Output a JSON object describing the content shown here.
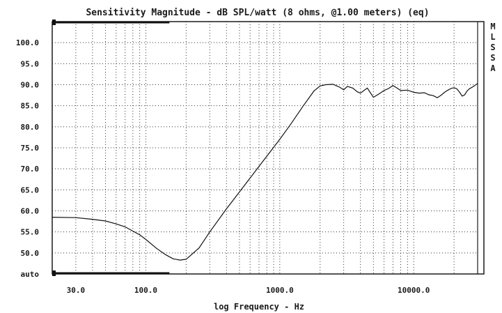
{
  "chart_data": {
    "type": "line",
    "title": "Sensitivity Magnitude - dB SPL/watt (8 ohms, @1.00 meters) (eq)",
    "xlabel": "log Frequency - Hz",
    "ylabel": "",
    "x_scale": "log",
    "xlim": [
      20,
      30000
    ],
    "ylim": [
      45,
      105
    ],
    "grid": true,
    "y_tick_labels": [
      {
        "value": 100,
        "label": "100.0"
      },
      {
        "value": 95,
        "label": "95.0"
      },
      {
        "value": 90,
        "label": "90.0"
      },
      {
        "value": 85,
        "label": "85.0"
      },
      {
        "value": 80,
        "label": "80.0"
      },
      {
        "value": 75,
        "label": "75.0"
      },
      {
        "value": 70,
        "label": "70.0"
      },
      {
        "value": 65,
        "label": "65.0"
      },
      {
        "value": 60,
        "label": "60.0"
      },
      {
        "value": 55,
        "label": "55.0"
      },
      {
        "value": 50,
        "label": "50.0"
      },
      {
        "value": 45,
        "label": "auto"
      }
    ],
    "x_tick_labels": [
      {
        "value": 30,
        "label": "30.0"
      },
      {
        "value": 100,
        "label": "100.0"
      },
      {
        "value": 1000,
        "label": "1000.0"
      },
      {
        "value": 10000,
        "label": "10000.0"
      }
    ],
    "side_labels": [
      "M",
      "L",
      "S",
      "S",
      "A"
    ],
    "series": [
      {
        "x": [
          20,
          30,
          40,
          50,
          60,
          70,
          80,
          90,
          100,
          120,
          140,
          160,
          180,
          200,
          250,
          300,
          400,
          500,
          600,
          800,
          1000,
          1200,
          1500,
          1800,
          2000,
          2200,
          2500,
          2800,
          3000,
          3200,
          3500,
          3800,
          4000,
          4500,
          5000,
          5500,
          6000,
          6500,
          7000,
          7500,
          8000,
          9000,
          10000,
          11000,
          12000,
          13000,
          14000,
          15000,
          16000,
          17000,
          18000,
          19000,
          20000,
          21000,
          22000,
          23000,
          24000,
          25000,
          26000,
          28000,
          30000
        ],
        "y": [
          58.5,
          58.4,
          58.0,
          57.6,
          56.9,
          56.2,
          55.2,
          54.3,
          53.2,
          51.1,
          49.6,
          48.6,
          48.3,
          48.5,
          51.2,
          55.0,
          60.5,
          64.5,
          67.8,
          73.0,
          77.0,
          80.5,
          85.0,
          88.5,
          89.7,
          90.0,
          90.1,
          89.4,
          88.8,
          89.6,
          89.2,
          88.3,
          88.0,
          89.2,
          87.0,
          87.8,
          88.6,
          89.1,
          89.8,
          89.2,
          88.6,
          88.7,
          88.2,
          88.0,
          88.1,
          87.6,
          87.4,
          86.9,
          87.5,
          88.2,
          88.7,
          89.1,
          89.3,
          89.0,
          88.2,
          87.3,
          87.6,
          88.5,
          89.0,
          89.6,
          90.3
        ]
      }
    ]
  }
}
